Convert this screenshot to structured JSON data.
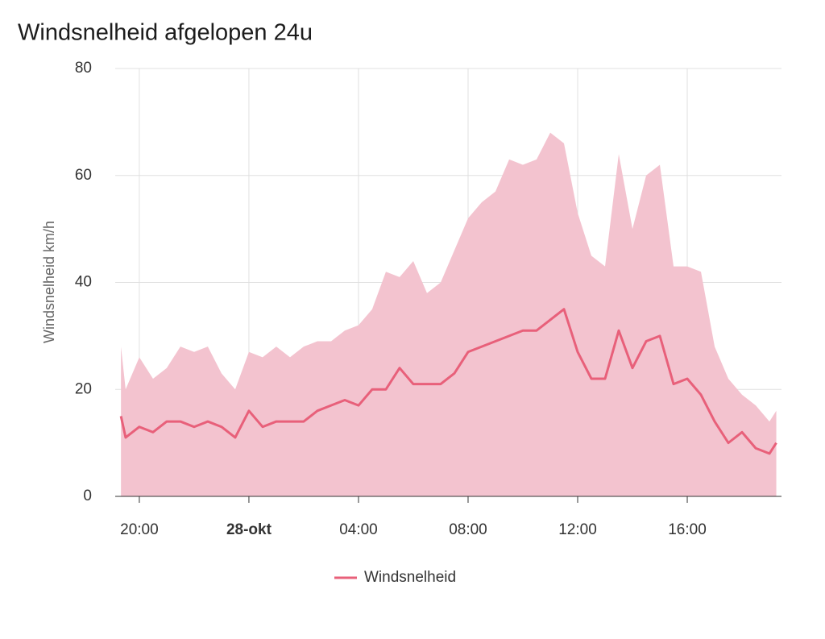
{
  "chart_data": {
    "type": "line",
    "title": "Windsnelheid afgelopen 24u",
    "ylabel": "Windsnelheid km/h",
    "x": [
      19.33,
      19.5,
      20,
      20.5,
      21,
      21.5,
      22,
      22.5,
      23,
      23.5,
      24,
      24.5,
      25,
      25.5,
      26,
      26.5,
      27,
      27.5,
      28,
      28.5,
      29,
      29.5,
      30,
      30.5,
      31,
      31.5,
      32,
      32.5,
      33,
      33.5,
      34,
      34.5,
      35,
      35.5,
      36,
      36.5,
      37,
      37.5,
      38,
      38.5,
      39,
      39.5,
      40,
      40.5,
      41,
      41.5,
      42,
      42.5,
      43,
      43.25
    ],
    "series": [
      {
        "color": "#f3c3cf",
        "fill": true,
        "values": [
          28,
          20,
          26,
          22,
          24,
          28,
          27,
          28,
          23,
          20,
          27,
          26,
          28,
          26,
          28,
          29,
          29,
          31,
          32,
          35,
          42,
          41,
          44,
          38,
          40,
          46,
          52,
          55,
          57,
          63,
          62,
          63,
          68,
          66,
          53,
          45,
          43,
          64,
          50,
          60,
          62,
          43,
          43,
          42,
          28,
          22,
          19,
          17,
          14,
          16
        ]
      },
      {
        "name": "Windsnelheid",
        "color": "#e8607a",
        "values": [
          15,
          11,
          13,
          12,
          14,
          14,
          13,
          14,
          13,
          11,
          16,
          13,
          14,
          14,
          14,
          16,
          17,
          18,
          17,
          20,
          20,
          24,
          21,
          21,
          21,
          23,
          27,
          28,
          29,
          30,
          31,
          31,
          33,
          35,
          27,
          22,
          22,
          31,
          24,
          29,
          30,
          21,
          22,
          19,
          14,
          10,
          12,
          9,
          8,
          10
        ]
      }
    ],
    "xlim": [
      19.12,
      43.44
    ],
    "xticks": [
      {
        "value": 20,
        "label": "20:00"
      },
      {
        "value": 24,
        "label": "28-okt",
        "bold": true
      },
      {
        "value": 28,
        "label": "04:00"
      },
      {
        "value": 32,
        "label": "08:00"
      },
      {
        "value": 36,
        "label": "12:00"
      },
      {
        "value": 40,
        "label": "16:00"
      }
    ],
    "ylim": [
      0,
      80
    ],
    "yticks": [
      0,
      20,
      40,
      60,
      80
    ],
    "grid": true,
    "legend": "bottom"
  }
}
